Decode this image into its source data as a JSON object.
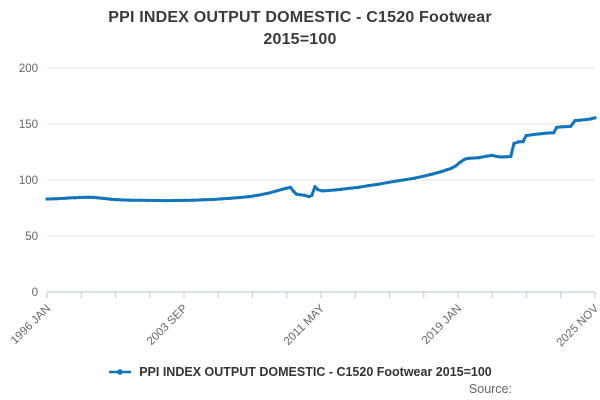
{
  "title": {
    "line1": "PPI INDEX OUTPUT DOMESTIC - C1520 Footwear",
    "line2": "2015=100"
  },
  "legend": {
    "label": "PPI INDEX OUTPUT DOMESTIC - C1520 Footwear 2015=100"
  },
  "source_label": "Source:",
  "colors": {
    "line": "#1274ba",
    "grid": "#e6e6e6",
    "axis": "#c6cede",
    "title_text": "#3a3a3a",
    "tick_label": "#666666",
    "legend_text": "#333333"
  },
  "chart_data": {
    "type": "line",
    "title": "PPI INDEX OUTPUT DOMESTIC - C1520 Footwear 2015=100",
    "xlabel": "",
    "ylabel": "",
    "ylim": [
      0,
      200
    ],
    "y_ticks": [
      0,
      50,
      100,
      150,
      200
    ],
    "grid": "horizontal",
    "legend_position": "bottom-center",
    "x_range": [
      "1996-01",
      "2025-11"
    ],
    "x_axis": {
      "tick_count": 17,
      "labeled_ticks": [
        {
          "index": 0,
          "label": "1996 JAN"
        },
        {
          "index": 4,
          "label": "2003 SEP"
        },
        {
          "index": 8,
          "label": "2011 MAY"
        },
        {
          "index": 12,
          "label": "2019 JAN"
        },
        {
          "index": 16,
          "label": "2025 NOV"
        }
      ]
    },
    "series": [
      {
        "name": "PPI INDEX OUTPUT DOMESTIC - C1520 Footwear 2015=100",
        "points": [
          [
            "1996-01",
            83.0
          ],
          [
            "1996-04",
            83.1
          ],
          [
            "1996-07",
            83.3
          ],
          [
            "1996-10",
            83.5
          ],
          [
            "1997-01",
            83.7
          ],
          [
            "1997-04",
            84.0
          ],
          [
            "1997-07",
            84.2
          ],
          [
            "1997-10",
            84.4
          ],
          [
            "1998-01",
            84.5
          ],
          [
            "1998-04",
            84.6
          ],
          [
            "1998-07",
            84.5
          ],
          [
            "1998-10",
            84.1
          ],
          [
            "1999-01",
            83.7
          ],
          [
            "1999-04",
            83.3
          ],
          [
            "1999-07",
            82.9
          ],
          [
            "1999-10",
            82.5
          ],
          [
            "2000-01",
            82.2
          ],
          [
            "2000-07",
            82.0
          ],
          [
            "2001-01",
            81.9
          ],
          [
            "2001-07",
            81.8
          ],
          [
            "2002-01",
            81.7
          ],
          [
            "2002-07",
            81.6
          ],
          [
            "2003-01",
            81.7
          ],
          [
            "2003-07",
            81.8
          ],
          [
            "2004-01",
            82.0
          ],
          [
            "2004-07",
            82.3
          ],
          [
            "2005-01",
            82.6
          ],
          [
            "2005-07",
            83.1
          ],
          [
            "2006-01",
            83.7
          ],
          [
            "2006-07",
            84.4
          ],
          [
            "2007-01",
            85.2
          ],
          [
            "2007-07",
            86.4
          ],
          [
            "2008-01",
            88.0
          ],
          [
            "2008-07",
            90.3
          ],
          [
            "2008-11",
            91.8
          ],
          [
            "2009-01",
            92.5
          ],
          [
            "2009-04",
            93.5
          ],
          [
            "2009-06",
            90.0
          ],
          [
            "2009-08",
            87.3
          ],
          [
            "2009-11",
            86.7
          ],
          [
            "2010-01",
            86.4
          ],
          [
            "2010-04",
            85.2
          ],
          [
            "2010-06",
            86.2
          ],
          [
            "2010-08",
            94.0
          ],
          [
            "2010-10",
            91.3
          ],
          [
            "2011-01",
            90.3
          ],
          [
            "2011-05",
            90.6
          ],
          [
            "2011-09",
            91.1
          ],
          [
            "2012-01",
            91.6
          ],
          [
            "2012-07",
            92.7
          ],
          [
            "2013-01",
            93.6
          ],
          [
            "2013-07",
            95.0
          ],
          [
            "2014-01",
            96.1
          ],
          [
            "2014-07",
            97.6
          ],
          [
            "2015-01",
            99.0
          ],
          [
            "2015-07",
            100.3
          ],
          [
            "2016-01",
            101.6
          ],
          [
            "2016-07",
            103.4
          ],
          [
            "2017-01",
            105.4
          ],
          [
            "2017-07",
            107.6
          ],
          [
            "2017-10",
            109.0
          ],
          [
            "2018-01",
            110.4
          ],
          [
            "2018-04",
            112.6
          ],
          [
            "2018-07",
            116.0
          ],
          [
            "2018-10",
            118.7
          ],
          [
            "2019-01",
            119.5
          ],
          [
            "2019-07",
            119.9
          ],
          [
            "2020-01",
            121.4
          ],
          [
            "2020-04",
            122.0
          ],
          [
            "2020-07",
            121.0
          ],
          [
            "2020-10",
            120.5
          ],
          [
            "2021-01",
            120.7
          ],
          [
            "2021-04",
            121.0
          ],
          [
            "2021-06",
            132.6
          ],
          [
            "2021-09",
            134.0
          ],
          [
            "2021-12",
            134.3
          ],
          [
            "2022-02",
            139.6
          ],
          [
            "2022-07",
            140.6
          ],
          [
            "2022-11",
            141.2
          ],
          [
            "2023-03",
            141.9
          ],
          [
            "2023-08",
            142.1
          ],
          [
            "2023-10",
            147.0
          ],
          [
            "2024-01",
            147.4
          ],
          [
            "2024-07",
            147.9
          ],
          [
            "2024-10",
            153.0
          ],
          [
            "2025-01",
            153.4
          ],
          [
            "2025-05",
            153.9
          ],
          [
            "2025-08",
            154.5
          ],
          [
            "2025-11",
            155.5
          ]
        ]
      }
    ]
  }
}
